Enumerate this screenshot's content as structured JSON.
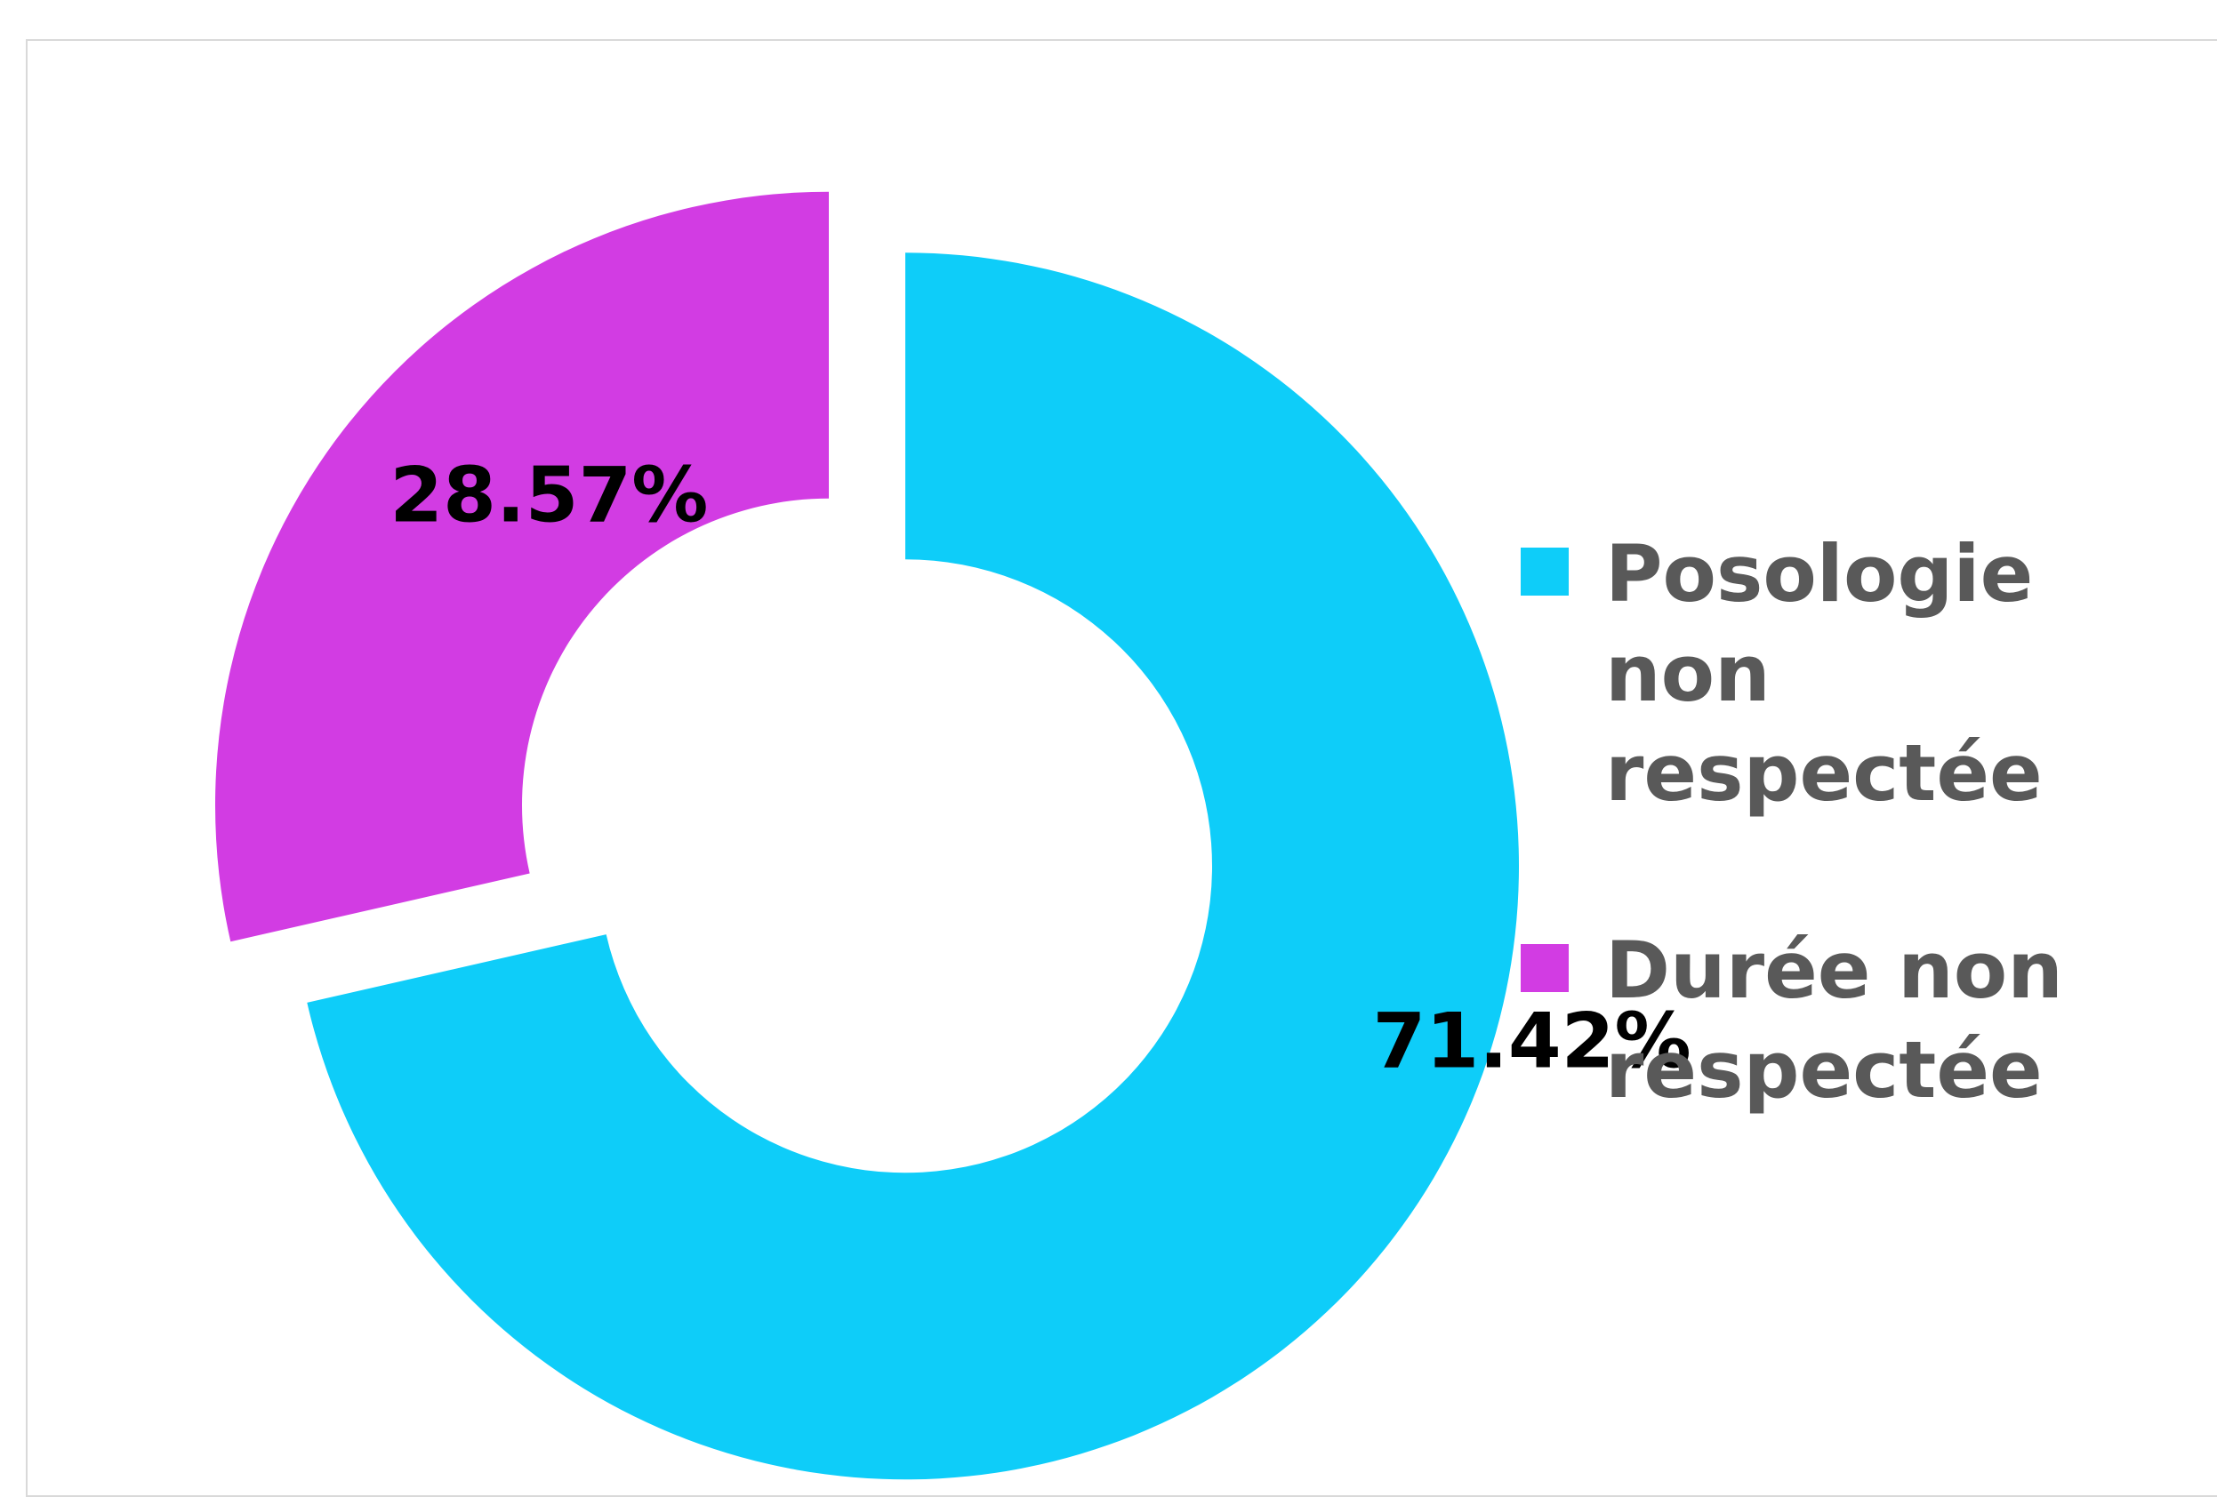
{
  "chart_data": {
    "type": "pie",
    "style": "donut-exploded",
    "title": "",
    "legend_position": "right",
    "series": [
      {
        "name": "Posologie non respectée",
        "value": 71.42,
        "label": "71.42%",
        "color": "#0ECDF9"
      },
      {
        "name": "Durée non respectée",
        "value": 28.57,
        "label": "28.57%",
        "color": "#D23CE3"
      }
    ]
  }
}
